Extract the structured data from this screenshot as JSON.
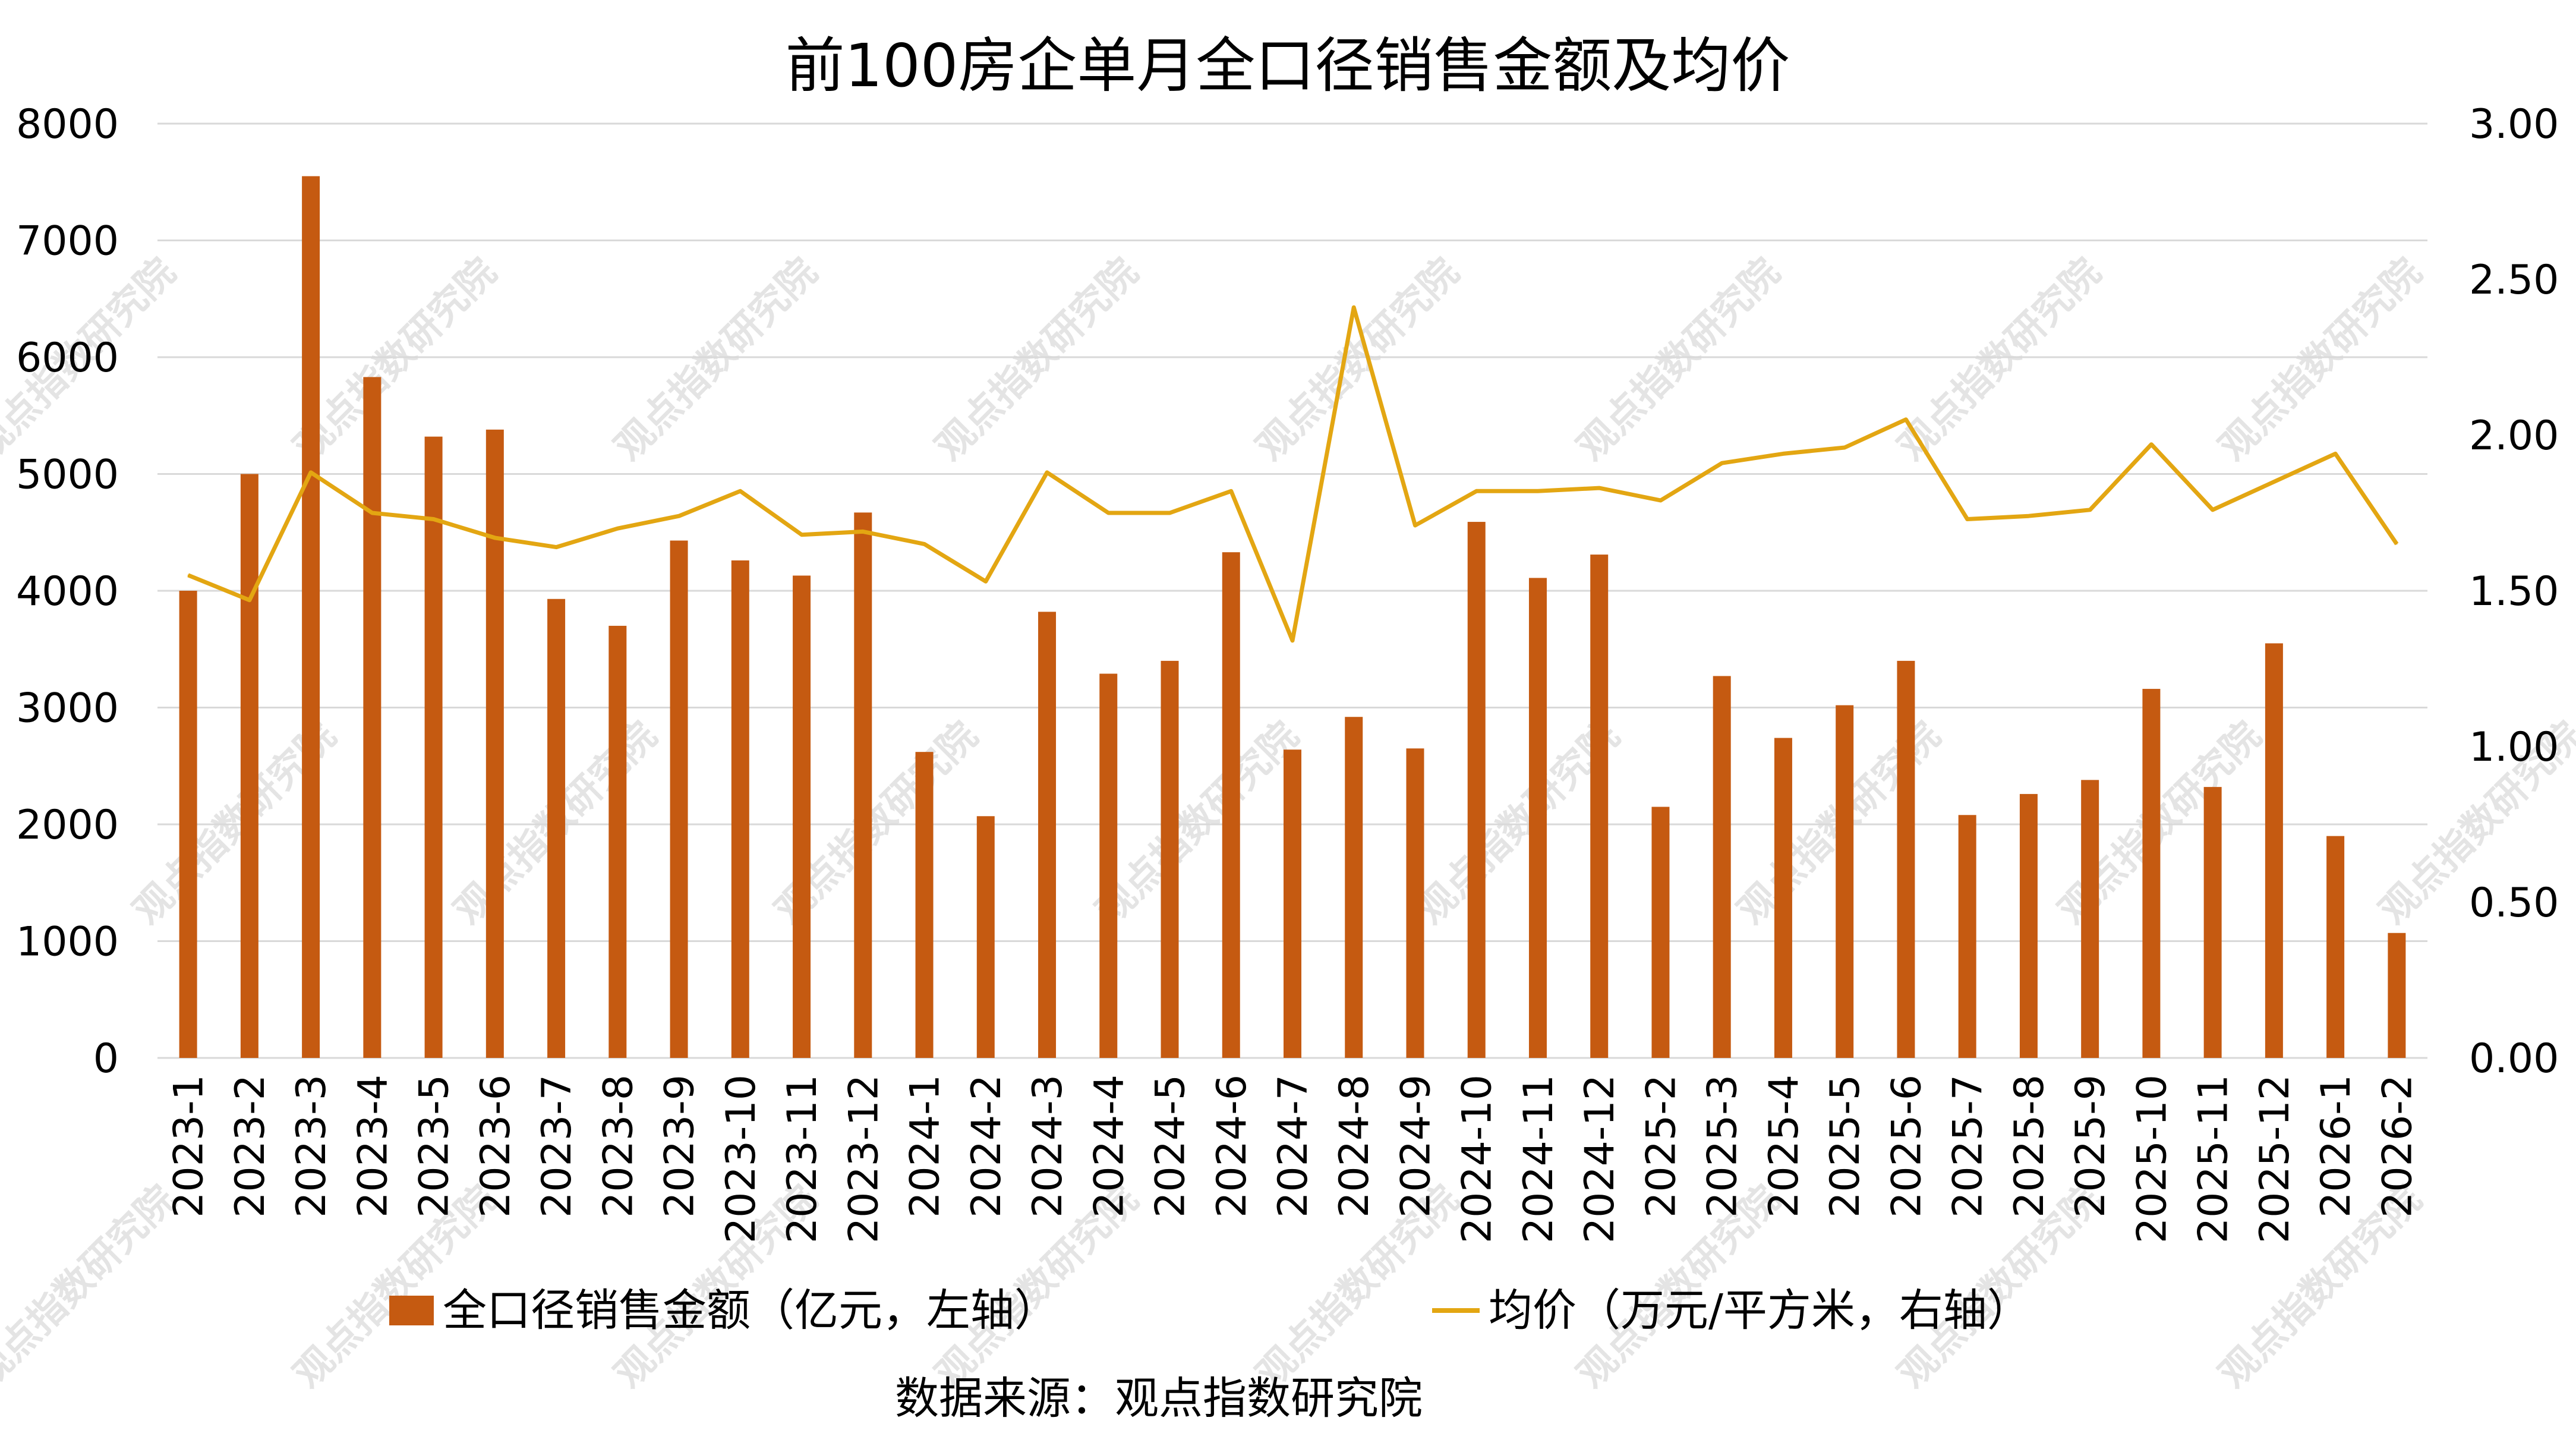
{
  "chart_data": {
    "type": "bar",
    "title": "前100房企单月全口径销售金额及均价",
    "categories": [
      "2023-1",
      "2023-2",
      "2023-3",
      "2023-4",
      "2023-5",
      "2023-6",
      "2023-7",
      "2023-8",
      "2023-9",
      "2023-10",
      "2023-11",
      "2023-12",
      "2024-1",
      "2024-2",
      "2024-3",
      "2024-4",
      "2024-5",
      "2024-6",
      "2024-7",
      "2024-8",
      "2024-9",
      "2024-10",
      "2024-11",
      "2024-12",
      "2025-2",
      "2025-3",
      "2025-4",
      "2025-5",
      "2025-6",
      "2025-7",
      "2025-8",
      "2025-9",
      "2025-10",
      "2025-11",
      "2025-12",
      "2026-1",
      "2026-2"
    ],
    "series": [
      {
        "name": "全口径销售金额（亿元，左轴）",
        "type": "bar",
        "axis": "left",
        "color": "#C55A11",
        "values": [
          4000,
          5000,
          7550,
          5830,
          5320,
          5380,
          3930,
          3700,
          4430,
          4260,
          4130,
          4670,
          2620,
          2070,
          3820,
          3290,
          3400,
          4330,
          2640,
          2920,
          2650,
          4590,
          4110,
          4310,
          2150,
          3270,
          2740,
          3020,
          3400,
          2080,
          2260,
          2380,
          3160,
          2320,
          3550,
          1900,
          1070
        ]
      },
      {
        "name": "均价（万元/平方米，右轴）",
        "type": "line",
        "axis": "right",
        "color": "#E3A612",
        "values": [
          1.55,
          1.47,
          1.88,
          1.75,
          1.73,
          1.67,
          1.64,
          1.7,
          1.74,
          1.82,
          1.68,
          1.69,
          1.65,
          1.53,
          1.88,
          1.75,
          1.75,
          1.82,
          1.34,
          2.41,
          1.71,
          1.82,
          1.82,
          1.83,
          1.79,
          1.91,
          1.94,
          1.96,
          2.05,
          1.73,
          1.74,
          1.76,
          1.97,
          1.76,
          1.85,
          1.94,
          1.65
        ]
      }
    ],
    "y_left": {
      "min": 0,
      "max": 8000,
      "ticks": [
        "0",
        "1000",
        "2000",
        "3000",
        "4000",
        "5000",
        "6000",
        "7000",
        "8000"
      ]
    },
    "y_right": {
      "min": 0,
      "max": 3.0,
      "ticks": [
        "0.00",
        "0.50",
        "1.00",
        "1.50",
        "2.00",
        "2.50",
        "3.00"
      ]
    },
    "grid": true,
    "legend": "bottom",
    "source": "数据来源：观点指数研究院",
    "watermark": "观点指数研究院"
  }
}
